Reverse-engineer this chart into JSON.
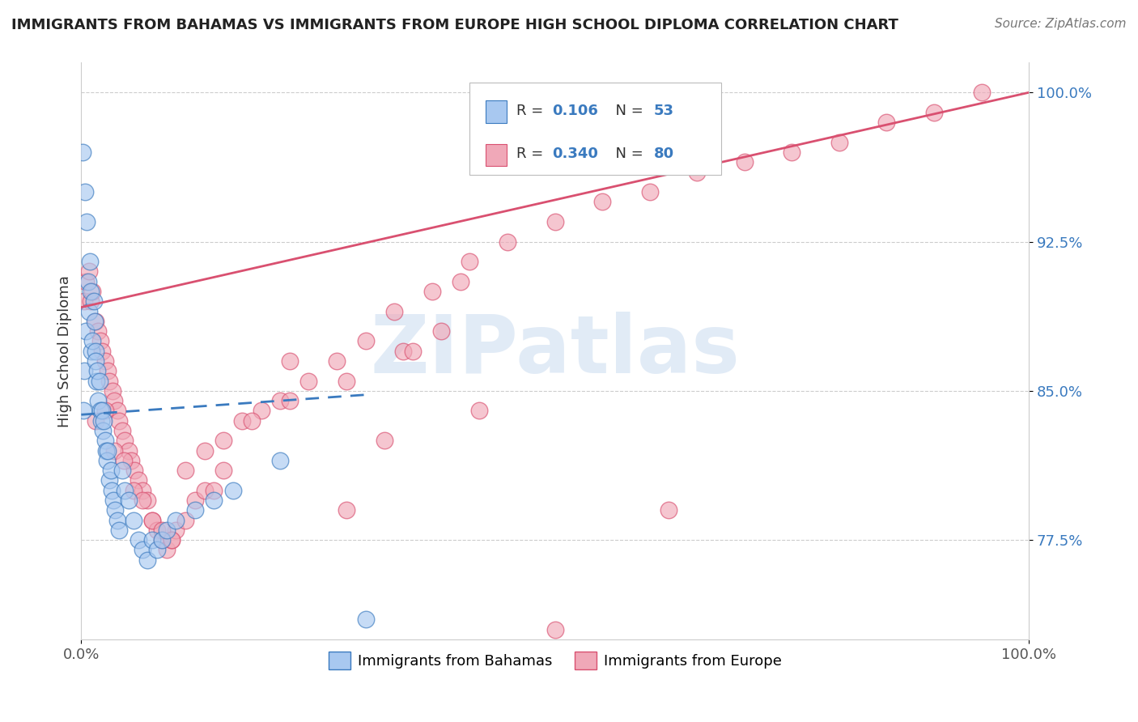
{
  "title": "IMMIGRANTS FROM BAHAMAS VS IMMIGRANTS FROM EUROPE HIGH SCHOOL DIPLOMA CORRELATION CHART",
  "source": "Source: ZipAtlas.com",
  "ylabel": "High School Diploma",
  "xlim": [
    0,
    1.0
  ],
  "ylim": [
    0.725,
    1.015
  ],
  "yticks": [
    0.775,
    0.85,
    0.925,
    1.0
  ],
  "ytick_labels": [
    "77.5%",
    "85.0%",
    "92.5%",
    "100.0%"
  ],
  "xticks": [
    0.0,
    1.0
  ],
  "xtick_labels": [
    "0.0%",
    "100.0%"
  ],
  "legend_label1": "Immigrants from Bahamas",
  "legend_label2": "Immigrants from Europe",
  "r1": 0.106,
  "n1": 53,
  "r2": 0.34,
  "n2": 80,
  "color1": "#a8c8f0",
  "color2": "#f0a8b8",
  "trendline1_color": "#3a7abf",
  "trendline2_color": "#d95070",
  "watermark": "ZIPatlas",
  "background_color": "#ffffff",
  "bahamas_x": [
    0.001,
    0.002,
    0.003,
    0.004,
    0.005,
    0.006,
    0.007,
    0.008,
    0.009,
    0.01,
    0.011,
    0.012,
    0.013,
    0.014,
    0.015,
    0.015,
    0.016,
    0.017,
    0.018,
    0.019,
    0.02,
    0.021,
    0.022,
    0.023,
    0.024,
    0.025,
    0.026,
    0.027,
    0.028,
    0.03,
    0.031,
    0.032,
    0.034,
    0.036,
    0.038,
    0.04,
    0.043,
    0.046,
    0.05,
    0.055,
    0.06,
    0.065,
    0.07,
    0.075,
    0.08,
    0.085,
    0.09,
    0.1,
    0.12,
    0.14,
    0.16,
    0.21,
    0.3
  ],
  "bahamas_y": [
    0.97,
    0.84,
    0.86,
    0.95,
    0.88,
    0.935,
    0.905,
    0.89,
    0.915,
    0.9,
    0.87,
    0.875,
    0.895,
    0.885,
    0.87,
    0.865,
    0.855,
    0.86,
    0.845,
    0.855,
    0.84,
    0.835,
    0.84,
    0.83,
    0.835,
    0.825,
    0.82,
    0.815,
    0.82,
    0.805,
    0.81,
    0.8,
    0.795,
    0.79,
    0.785,
    0.78,
    0.81,
    0.8,
    0.795,
    0.785,
    0.775,
    0.77,
    0.765,
    0.775,
    0.77,
    0.775,
    0.78,
    0.785,
    0.79,
    0.795,
    0.8,
    0.815,
    0.735
  ],
  "europe_x": [
    0.003,
    0.005,
    0.008,
    0.01,
    0.012,
    0.015,
    0.018,
    0.02,
    0.022,
    0.025,
    0.028,
    0.03,
    0.033,
    0.035,
    0.038,
    0.04,
    0.043,
    0.046,
    0.05,
    0.053,
    0.056,
    0.06,
    0.065,
    0.07,
    0.075,
    0.08,
    0.085,
    0.09,
    0.095,
    0.1,
    0.11,
    0.12,
    0.13,
    0.14,
    0.15,
    0.17,
    0.19,
    0.21,
    0.24,
    0.27,
    0.3,
    0.33,
    0.37,
    0.41,
    0.45,
    0.5,
    0.55,
    0.6,
    0.65,
    0.7,
    0.75,
    0.8,
    0.85,
    0.9,
    0.95,
    0.015,
    0.025,
    0.035,
    0.045,
    0.055,
    0.065,
    0.075,
    0.085,
    0.095,
    0.11,
    0.13,
    0.15,
    0.18,
    0.22,
    0.28,
    0.34,
    0.4,
    0.28,
    0.35,
    0.42,
    0.5,
    0.22,
    0.32,
    0.38,
    0.62
  ],
  "europe_y": [
    0.895,
    0.905,
    0.91,
    0.895,
    0.9,
    0.885,
    0.88,
    0.875,
    0.87,
    0.865,
    0.86,
    0.855,
    0.85,
    0.845,
    0.84,
    0.835,
    0.83,
    0.825,
    0.82,
    0.815,
    0.81,
    0.805,
    0.8,
    0.795,
    0.785,
    0.78,
    0.775,
    0.77,
    0.775,
    0.78,
    0.785,
    0.795,
    0.8,
    0.8,
    0.81,
    0.835,
    0.84,
    0.845,
    0.855,
    0.865,
    0.875,
    0.89,
    0.9,
    0.915,
    0.925,
    0.935,
    0.945,
    0.95,
    0.96,
    0.965,
    0.97,
    0.975,
    0.985,
    0.99,
    1.0,
    0.835,
    0.84,
    0.82,
    0.815,
    0.8,
    0.795,
    0.785,
    0.78,
    0.775,
    0.81,
    0.82,
    0.825,
    0.835,
    0.845,
    0.855,
    0.87,
    0.905,
    0.79,
    0.87,
    0.84,
    0.73,
    0.865,
    0.825,
    0.88,
    0.79
  ],
  "trendline1_start_x": 0.0,
  "trendline1_start_y": 0.838,
  "trendline1_end_x": 0.3,
  "trendline1_end_y": 0.848,
  "trendline2_start_x": 0.0,
  "trendline2_start_y": 0.892,
  "trendline2_end_x": 1.0,
  "trendline2_end_y": 1.0
}
